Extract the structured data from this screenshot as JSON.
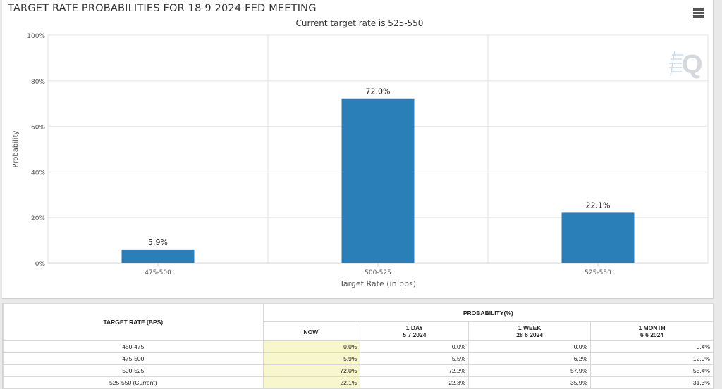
{
  "chart_data": {
    "type": "bar",
    "title": "TARGET RATE PROBABILITIES FOR 18 9 2024 FED MEETING",
    "subtitle": "Current target rate is 525-550",
    "xlabel": "Target Rate (in bps)",
    "ylabel": "Probability",
    "categories": [
      "475-500",
      "500-525",
      "525-550"
    ],
    "values": [
      5.9,
      72.0,
      22.1
    ],
    "data_labels": [
      "5.9%",
      "72.0%",
      "22.1%"
    ],
    "ylim": [
      0,
      100
    ],
    "y_ticks": [
      0,
      20,
      40,
      60,
      80,
      100
    ],
    "y_tick_labels": [
      "0%",
      "20%",
      "40%",
      "60%",
      "80%",
      "100%"
    ],
    "grid": true,
    "bar_color": "#2b7fb9"
  },
  "menu_icon": "hamburger-menu-icon",
  "watermark_icon": "q-logo-icon",
  "table": {
    "header_rate": "TARGET RATE (BPS)",
    "header_prob": "PROBABILITY(%)",
    "now_label": "NOW",
    "now_marker": "*",
    "columns": [
      {
        "line1": "1 DAY",
        "line2": "5 7 2024"
      },
      {
        "line1": "1 WEEK",
        "line2": "28 6 2024"
      },
      {
        "line1": "1 MONTH",
        "line2": "6 6 2024"
      }
    ],
    "rows": [
      {
        "rate": "450-475",
        "now": "0.0%",
        "day": "0.0%",
        "week": "0.0%",
        "month": "0.4%"
      },
      {
        "rate": "475-500",
        "now": "5.9%",
        "day": "5.5%",
        "week": "6.2%",
        "month": "12.9%"
      },
      {
        "rate": "500-525",
        "now": "72.0%",
        "day": "72.2%",
        "week": "57.9%",
        "month": "55.4%"
      },
      {
        "rate": "525-550 (Current)",
        "now": "22.1%",
        "day": "22.3%",
        "week": "35.9%",
        "month": "31.3%"
      }
    ],
    "now_highlight_color": "#f8f6cc"
  }
}
